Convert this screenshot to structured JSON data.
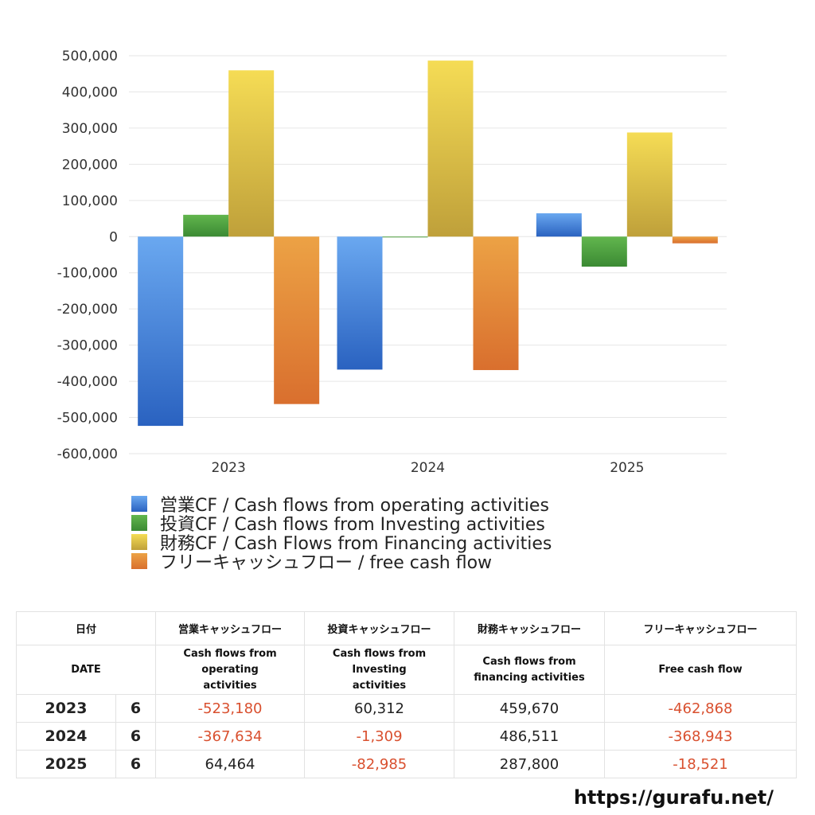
{
  "chart_data": {
    "type": "bar",
    "categories": [
      "2023",
      "2024",
      "2025"
    ],
    "series": [
      {
        "name": "営業CF / Cash flows from operating activities",
        "values": [
          -523180,
          -367634,
          64464
        ],
        "color": "#3b7fd8"
      },
      {
        "name": "投資CF / Cash flows from Investing activities",
        "values": [
          60312,
          -1309,
          -82985
        ],
        "color": "#4c9e3f"
      },
      {
        "name": "財務CF / Cash Flows from Financing activities",
        "values": [
          459670,
          486511,
          287800
        ],
        "color": "#e8cc45"
      },
      {
        "name": "フリーキャッシュフロー / free cash flow",
        "values": [
          -462868,
          -368943,
          -18521
        ],
        "color": "#e4803a"
      }
    ],
    "ylim": [
      -600000,
      500000
    ],
    "yticks": [
      500000,
      400000,
      300000,
      200000,
      100000,
      0,
      -100000,
      -200000,
      -300000,
      -400000,
      -500000,
      -600000
    ],
    "ytick_labels": [
      "500,000",
      "400,000",
      "300,000",
      "200,000",
      "100,000",
      "0",
      "-100,000",
      "-200,000",
      "-300,000",
      "-400,000",
      "-500,000",
      "-600,000"
    ],
    "grid": true,
    "legend": "bottom"
  },
  "table": {
    "headers_jp": [
      "日付",
      "営業キャッシュフロー",
      "投資キャッシュフロー",
      "財務キャッシュフロー",
      "フリーキャッシュフロー"
    ],
    "headers_en": [
      "DATE",
      "Cash flows from operating activities",
      "Cash flows from Investing activities",
      "Cash flows from financing activities",
      "Free cash flow"
    ],
    "rows": [
      {
        "year": "2023",
        "month": "6",
        "op": "-523,180",
        "inv": "60,312",
        "fin": "459,670",
        "free": "-462,868"
      },
      {
        "year": "2024",
        "month": "6",
        "op": "-367,634",
        "inv": "-1,309",
        "fin": "486,511",
        "free": "-368,943"
      },
      {
        "year": "2025",
        "month": "6",
        "op": "64,464",
        "inv": "-82,985",
        "fin": "287,800",
        "free": "-18,521"
      }
    ]
  },
  "watermark": "https://gurafu.net/"
}
